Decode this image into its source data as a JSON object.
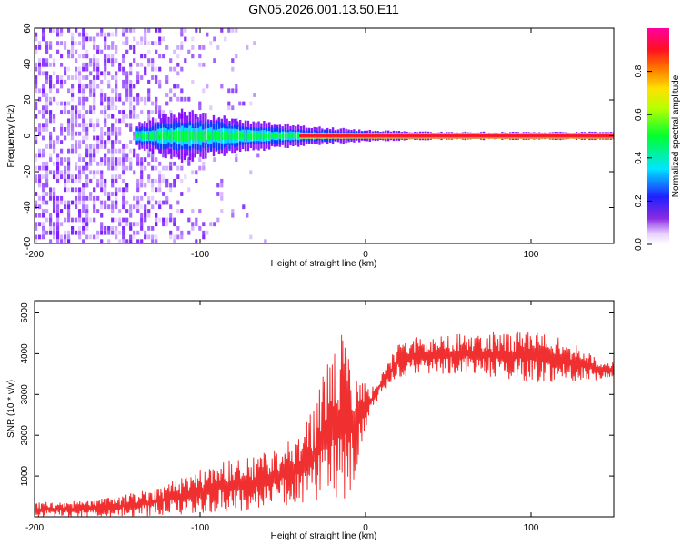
{
  "title": "GN05.2026.001.13.50.E11",
  "colors": {
    "snr_line": "#f03030",
    "signal_band": [
      "#7f00ff",
      "#0040ff",
      "#00e0ff",
      "#00ff40",
      "#ffd000",
      "#ff2020",
      "#ff0080"
    ],
    "noise": "#7a1cff"
  },
  "chart_data": [
    {
      "type": "heatmap",
      "title": "GN05.2026.001.13.50.E11",
      "xlabel": "Height of straight line (km)",
      "ylabel": "Frequency (Hz)",
      "xlim": [
        -200,
        150
      ],
      "ylim": [
        -60,
        60
      ],
      "x_ticks": [
        -200,
        -100,
        0,
        100
      ],
      "y_ticks": [
        -60,
        -40,
        -20,
        0,
        20,
        40,
        60
      ],
      "colorbar": {
        "label": "Normalized spectral amplitude",
        "range": [
          0.0,
          1.0
        ],
        "ticks": [
          0.0,
          0.2,
          0.4,
          0.6,
          0.8
        ],
        "colormap": "rainbow (purple-blue-cyan-green-yellow-red-magenta)"
      },
      "features": {
        "carrier_frequency_hz": 0,
        "noise_only_region_km": [
          -200,
          -140
        ],
        "signal_spread_half_width_hz": [
          {
            "x": -140,
            "hz": 6
          },
          {
            "x": -110,
            "hz": 13
          },
          {
            "x": -80,
            "hz": 9
          },
          {
            "x": -50,
            "hz": 6
          },
          {
            "x": -20,
            "hz": 4
          },
          {
            "x": 0,
            "hz": 3
          },
          {
            "x": 40,
            "hz": 2
          },
          {
            "x": 150,
            "hz": 2
          }
        ]
      }
    },
    {
      "type": "line",
      "xlabel": "Height of straight line (km)",
      "ylabel": "SNR (10 * v/v)",
      "xlim": [
        -200,
        150
      ],
      "ylim": [
        0,
        5300
      ],
      "x_ticks": [
        -200,
        -100,
        0,
        100
      ],
      "y_ticks": [
        1000,
        2000,
        3000,
        4000,
        5000
      ],
      "series": [
        {
          "envelope": {
            "x": [
              -200,
              -170,
              -150,
              -130,
              -110,
              -90,
              -70,
              -55,
              -40,
              -30,
              -20,
              -15,
              -10,
              -5,
              0,
              5,
              10,
              15,
              20,
              30,
              40,
              60,
              80,
              100,
              120,
              140,
              150
            ],
            "low": [
              0,
              0,
              0,
              0,
              50,
              100,
              150,
              250,
              300,
              300,
              500,
              200,
              300,
              1000,
              2100,
              2700,
              3000,
              3200,
              3400,
              3450,
              3500,
              3500,
              3400,
              3300,
              3300,
              3350,
              3400
            ],
            "high": [
              350,
              400,
              500,
              700,
              1000,
              1350,
              1500,
              1700,
              2100,
              2800,
              4300,
              4500,
              4300,
              3700,
              3250,
              3200,
              3600,
              3900,
              4300,
              4400,
              4450,
              4500,
              4550,
              4600,
              4400,
              3900,
              3800
            ]
          }
        }
      ]
    }
  ]
}
